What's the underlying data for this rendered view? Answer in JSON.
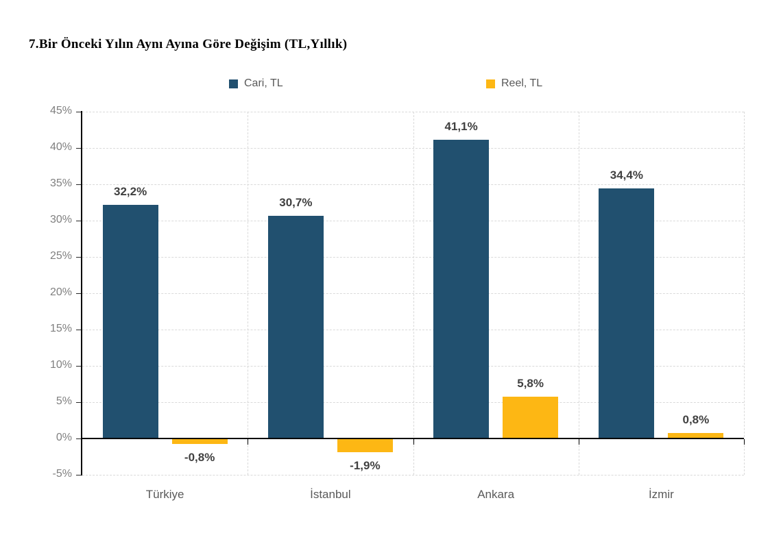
{
  "title": "7.Bir Önceki Yılın Aynı Ayına Göre Değişim (TL,Yıllık)",
  "chart_data": {
    "type": "bar",
    "title": "7.Bir Önceki Yılın Aynı Ayına Göre Değişim (TL,Yıllık)",
    "categories": [
      "Türkiye",
      "İstanbul",
      "Ankara",
      "İzmir"
    ],
    "series": [
      {
        "name": "Cari, TL",
        "color": "#21506F",
        "values": [
          32.2,
          30.7,
          41.1,
          34.4
        ],
        "labels": [
          "32,2%",
          "30,7%",
          "41,1%",
          "34,4%"
        ]
      },
      {
        "name": "Reel, TL",
        "color": "#FDB714",
        "values": [
          -0.8,
          -1.9,
          5.8,
          0.8
        ],
        "labels": [
          "-0,8%",
          "-1,9%",
          "5,8%",
          "0,8%"
        ]
      }
    ],
    "y_axis": {
      "min": -5,
      "max": 45,
      "step": 5,
      "tick_labels": [
        "45%",
        "40%",
        "35%",
        "30%",
        "25%",
        "20%",
        "15%",
        "10%",
        "5%",
        "0%",
        "-5%"
      ]
    },
    "grid": true,
    "legend_position": "top",
    "colors": {
      "axis": "#000000",
      "grid": "#D9D9D9",
      "value_label": "#404040",
      "tick_label": "#7F7F7F",
      "category_label": "#595959",
      "background": "#FFFFFF"
    }
  }
}
